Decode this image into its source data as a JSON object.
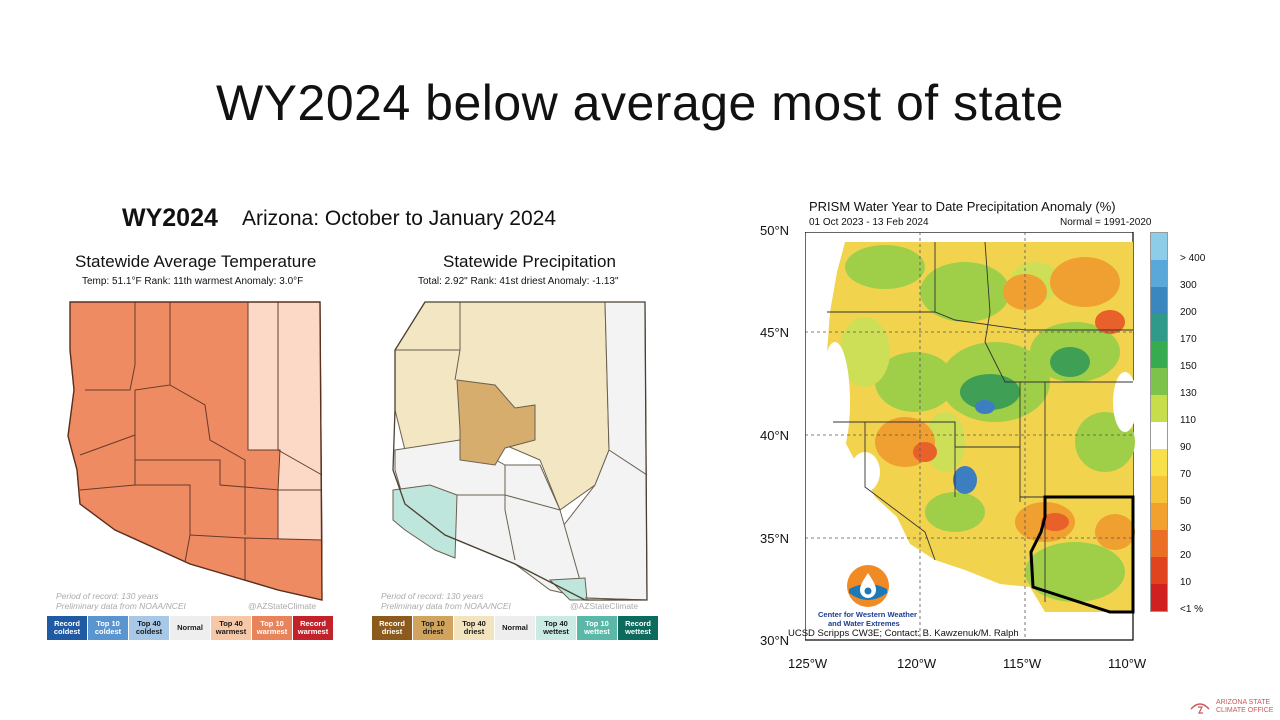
{
  "slide": {
    "title": "WY2024 below average most of state"
  },
  "left_header": {
    "wy": "WY2024",
    "period": "Arizona: October to January 2024"
  },
  "temp_panel": {
    "title": "Statewide Average Temperature",
    "subtitle": "Temp: 51.1°F  Rank: 11th warmest  Anomaly: 3.0°F",
    "footnote_1": "Period of record: 130 years",
    "footnote_2": "Preliminary data from NOAA/NCEI",
    "handle": "@AZStateClimate",
    "legend": [
      {
        "label": "Record coldest",
        "color": "#1f5aa3",
        "text": "#ffffff"
      },
      {
        "label": "Top 10 coldest",
        "color": "#5b95cf",
        "text": "#ffffff"
      },
      {
        "label": "Top 40 coldest",
        "color": "#a8c8e8",
        "text": "#1a1a1a"
      },
      {
        "label": "Normal",
        "color": "#eeeeee",
        "text": "#1a1a1a"
      },
      {
        "label": "Top 40 warmest",
        "color": "#f6c8a8",
        "text": "#1a1a1a"
      },
      {
        "label": "Top 10 warmest",
        "color": "#e8835a",
        "text": "#ffffff"
      },
      {
        "label": "Record warmest",
        "color": "#c4222b",
        "text": "#ffffff"
      }
    ]
  },
  "precip_panel": {
    "title": "Statewide Precipitation",
    "subtitle": "Total: 2.92\"  Rank: 41st driest  Anomaly: -1.13\"",
    "footnote_1": "Period of record: 130 years",
    "footnote_2": "Preliminary data from NOAA/NCEI",
    "handle": "@AZStateClimate",
    "legend": [
      {
        "label": "Record driest",
        "color": "#8c5a1c",
        "text": "#ffffff"
      },
      {
        "label": "Top 10 driest",
        "color": "#d0a45e",
        "text": "#1a1a1a"
      },
      {
        "label": "Top 40 driest",
        "color": "#f3e4c0",
        "text": "#1a1a1a"
      },
      {
        "label": "Normal",
        "color": "#eeeeee",
        "text": "#1a1a1a"
      },
      {
        "label": "Top 40 wettest",
        "color": "#c9ebe3",
        "text": "#1a1a1a"
      },
      {
        "label": "Top 10 wettest",
        "color": "#5bb8a8",
        "text": "#ffffff"
      },
      {
        "label": "Record wettest",
        "color": "#0d6b5e",
        "text": "#ffffff"
      }
    ]
  },
  "prism": {
    "title": "PRISM Water Year to Date Precipitation Anomaly (%)",
    "dates": "01 Oct 2023 - 13 Feb 2024",
    "normal": "Normal = 1991-2020",
    "lat_labels": [
      "50°N",
      "45°N",
      "40°N",
      "35°N",
      "30°N"
    ],
    "lon_labels": [
      "125°W",
      "120°W",
      "115°W",
      "110°W"
    ],
    "colorbar": [
      {
        "label": "> 400",
        "color": "#8ecde8"
      },
      {
        "label": "300",
        "color": "#5aa7d9"
      },
      {
        "label": "200",
        "color": "#3a86be"
      },
      {
        "label": "170",
        "color": "#2f9a8a"
      },
      {
        "label": "150",
        "color": "#36ab4f"
      },
      {
        "label": "130",
        "color": "#7dc24a"
      },
      {
        "label": "110",
        "color": "#c7dd4a"
      },
      {
        "label": "90",
        "color": "#ffffff"
      },
      {
        "label": "70",
        "color": "#f7e04a"
      },
      {
        "label": "50",
        "color": "#f5c63a"
      },
      {
        "label": "30",
        "color": "#f2a02e"
      },
      {
        "label": "20",
        "color": "#ea6e24"
      },
      {
        "label": "10",
        "color": "#e0441f"
      },
      {
        "label": "<1 %",
        "color": "#d02020"
      }
    ],
    "cw3e_line1": "Center for Western Weather",
    "cw3e_line2": "and Water Extremes",
    "credit": "UCSD Scripps CW3E; Contact: B. Kawzenuk/M. Ralph"
  },
  "office": {
    "line1": "ARIZONA STATE",
    "line2": "CLIMATE OFFICE"
  }
}
